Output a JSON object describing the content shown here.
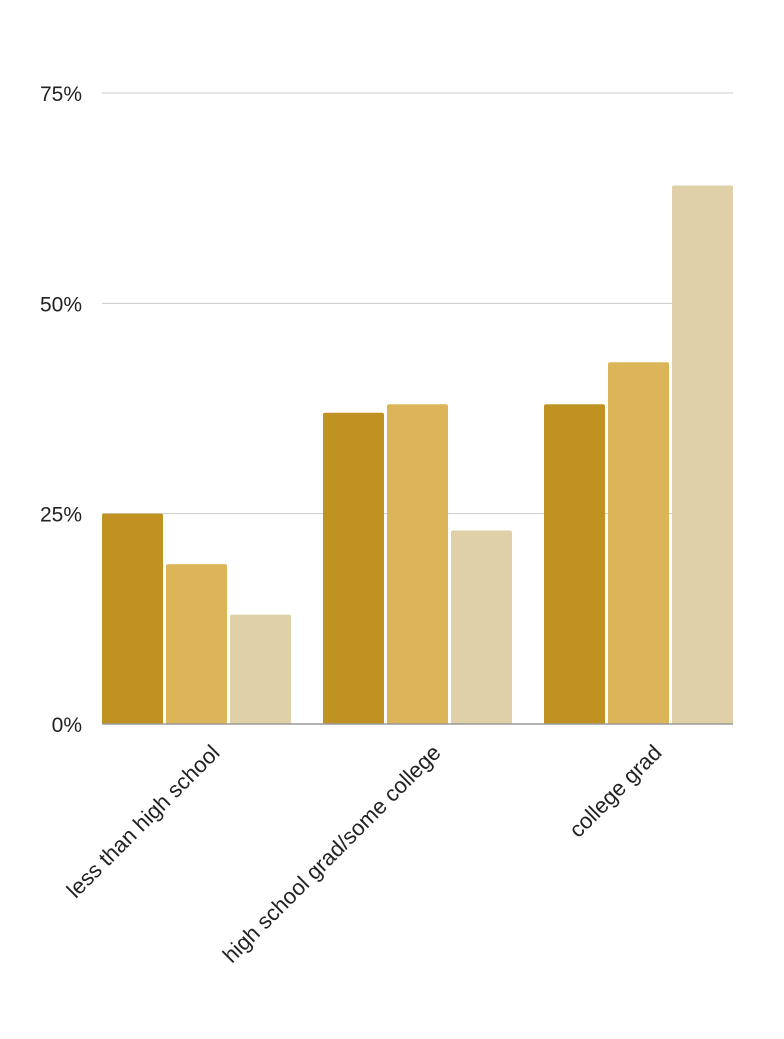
{
  "chart_data": {
    "type": "bar",
    "categories": [
      "less than high school",
      "high school grad/some college",
      "college grad"
    ],
    "series": [
      {
        "color": "#bf9222",
        "values": [
          25,
          37,
          38
        ]
      },
      {
        "color": "#dbb557",
        "values": [
          19,
          38,
          43
        ]
      },
      {
        "color": "#dfd0a7",
        "values": [
          13,
          23,
          64
        ]
      }
    ],
    "ylim": [
      0,
      75
    ],
    "yticks": [
      0,
      25,
      50,
      75
    ],
    "ytick_labels": [
      "0%",
      "25%",
      "50%",
      "75%"
    ],
    "grid": true,
    "legend": "none"
  }
}
